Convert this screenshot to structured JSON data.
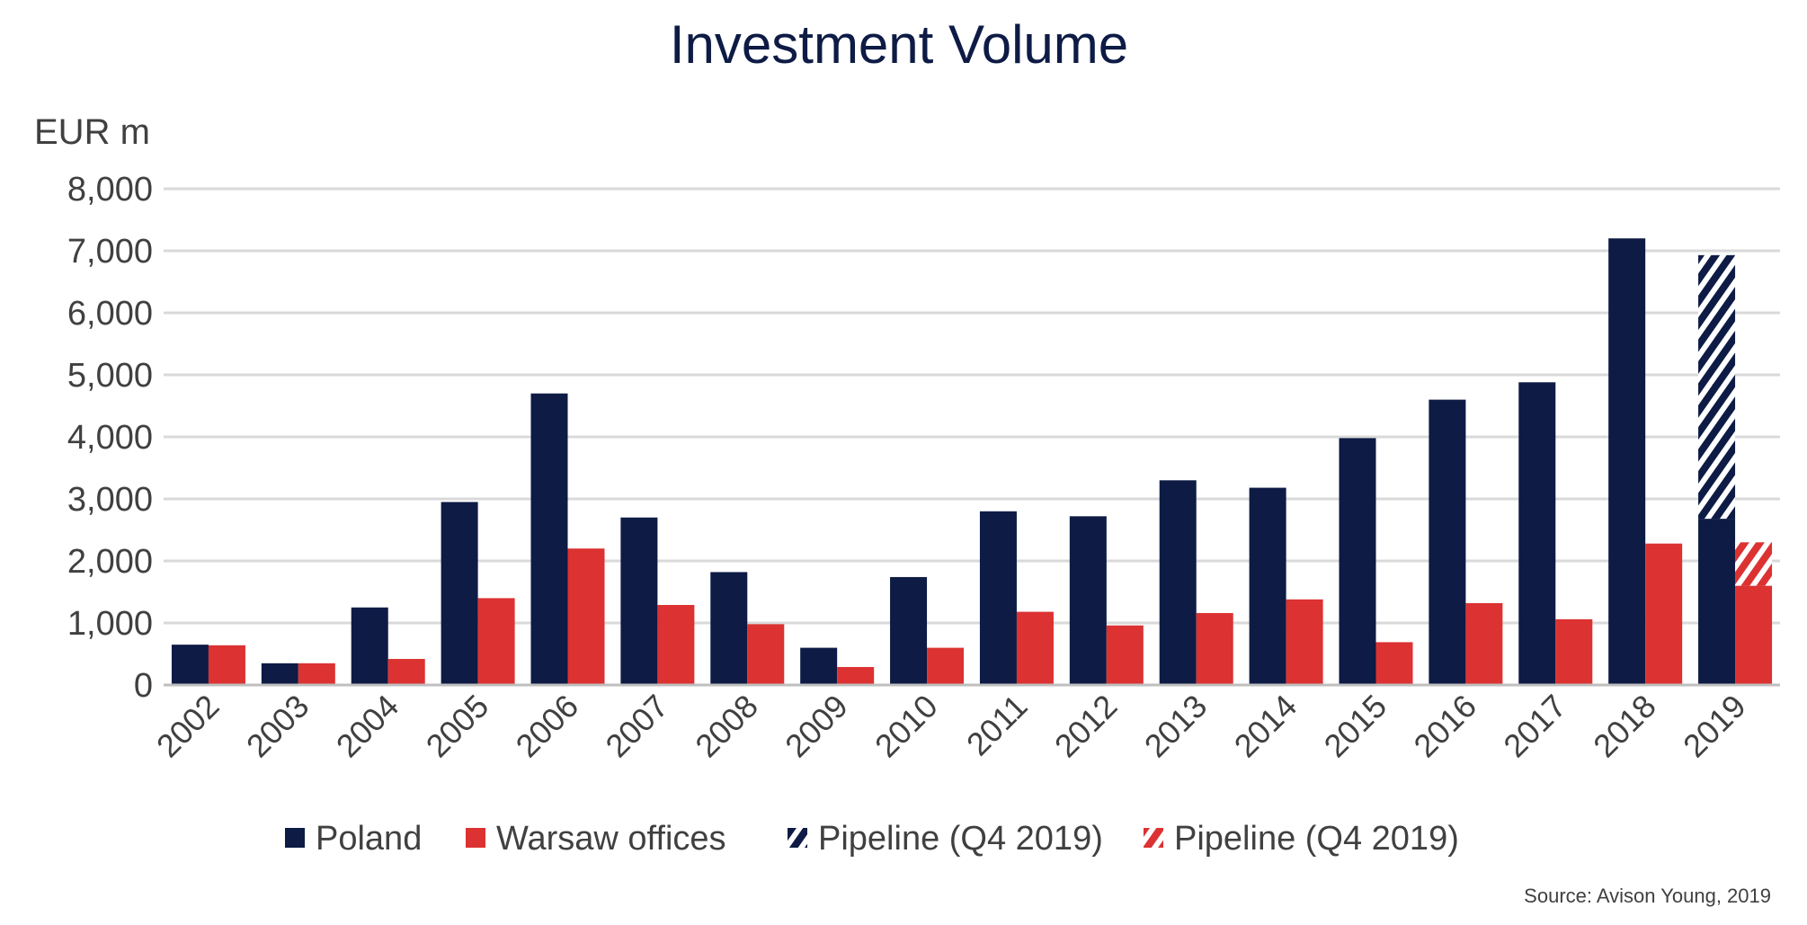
{
  "chart_data": {
    "type": "bar",
    "title": "Investment Volume",
    "ylabel": "EUR m",
    "ylim": [
      0,
      8000
    ],
    "yticks": [
      "0",
      "1,000",
      "2,000",
      "3,000",
      "4,000",
      "5,000",
      "6,000",
      "7,000",
      "8,000"
    ],
    "grid": true,
    "legend_position": "bottom",
    "categories": [
      "2002",
      "2003",
      "2004",
      "2005",
      "2006",
      "2007",
      "2008",
      "2009",
      "2010",
      "2011",
      "2012",
      "2013",
      "2014",
      "2015",
      "2016",
      "2017",
      "2018",
      "2019"
    ],
    "series": [
      {
        "name": "Poland",
        "color": "#0d1b45",
        "pattern": "solid",
        "values": [
          650,
          350,
          1250,
          2950,
          4700,
          2700,
          1820,
          600,
          1740,
          2800,
          2720,
          3300,
          3180,
          3980,
          4600,
          4880,
          7200,
          2680
        ]
      },
      {
        "name": "Warsaw offices",
        "color": "#dc3232",
        "pattern": "solid",
        "values": [
          640,
          350,
          420,
          1400,
          2200,
          1290,
          980,
          290,
          600,
          1180,
          960,
          1160,
          1380,
          690,
          1320,
          1060,
          2280,
          1600
        ]
      },
      {
        "name": "Pipeline (Q4 2019)",
        "color": "#0d1b45",
        "pattern": "hatched",
        "stacked_on": "Poland",
        "values": [
          null,
          null,
          null,
          null,
          null,
          null,
          null,
          null,
          null,
          null,
          null,
          null,
          null,
          null,
          null,
          null,
          null,
          4250
        ]
      },
      {
        "name": "Pipeline (Q4 2019)",
        "color": "#dc3232",
        "pattern": "hatched",
        "stacked_on": "Warsaw offices",
        "values": [
          null,
          null,
          null,
          null,
          null,
          null,
          null,
          null,
          null,
          null,
          null,
          null,
          null,
          null,
          null,
          null,
          null,
          700
        ]
      }
    ],
    "source": "Source: Avison Young, 2019"
  }
}
